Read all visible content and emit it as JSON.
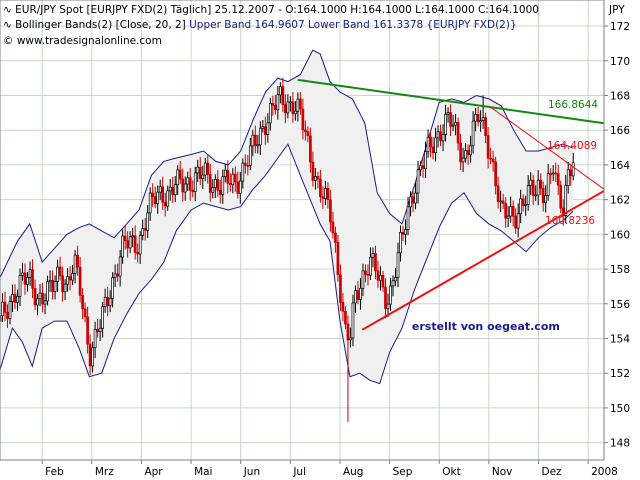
{
  "header": {
    "line1": "EUR/JPY Spot [EURJPY FXD(2)  Täglich] 25.12.2007 - O:164.1000 H:164.1000 L:164.1000 C:164.1000",
    "line2_prefix": "Bollinger Bands(2) [Close, 20, 2]",
    "line2_bands": "Upper Band 164.9607 Lower Band 161.3378 {EURJPY FXD(2)}",
    "line3": "© www.tradesignalonline.com"
  },
  "colors": {
    "background": "#ffffff",
    "grid": "#c8d6c8",
    "band_fill": "#f0f0f0",
    "band_line": "#1a1a8c",
    "candle_up": "#000000",
    "candle_down": "#cc0000",
    "upper_trendline": "#118811",
    "lower_trendline": "#ee1111",
    "upper_label": "#118811",
    "lower_label": "#ee1111",
    "credit": "#1a1a8c"
  },
  "chart_data": {
    "type": "candlestick",
    "instrument": "EUR/JPY Spot",
    "title": "EUR/JPY Spot [EURJPY FXD(2) Täglich] 25.12.2007",
    "ohlc_last": {
      "open": 164.1,
      "high": 164.1,
      "low": 164.1,
      "close": 164.1
    },
    "x_unit": "month (2007; 12 = Jan 2008)",
    "y_axis": {
      "label": "JPY",
      "side": "right",
      "range": [
        147,
        173.5
      ],
      "ticks": [
        148,
        150,
        152,
        154,
        156,
        158,
        160,
        162,
        164,
        166,
        168,
        170,
        172
      ]
    },
    "x_axis": {
      "range": [
        1.15,
        13.32
      ],
      "ticks": [
        {
          "label": "Feb",
          "x": 2.0
        },
        {
          "label": "Mrz",
          "x": 3.0
        },
        {
          "label": "Apr",
          "x": 4.0
        },
        {
          "label": "Mai",
          "x": 5.0
        },
        {
          "label": "Jun",
          "x": 6.0
        },
        {
          "label": "Jul",
          "x": 7.0
        },
        {
          "label": "Aug",
          "x": 8.0
        },
        {
          "label": "Sep",
          "x": 9.0
        },
        {
          "label": "Okt",
          "x": 10.0
        },
        {
          "label": "Nov",
          "x": 11.0
        },
        {
          "label": "Dez",
          "x": 12.0
        },
        {
          "label": "2008",
          "x": 13.0
        }
      ]
    },
    "grid": true,
    "close_series": {
      "name": "EUR/JPY close",
      "points": [
        [
          1.15,
          155.0
        ],
        [
          1.3,
          155.6
        ],
        [
          1.45,
          156.8
        ],
        [
          1.6,
          157.4
        ],
        [
          1.75,
          157.2
        ],
        [
          1.9,
          156.4
        ],
        [
          2.05,
          156.6
        ],
        [
          2.2,
          156.8
        ],
        [
          2.35,
          157.8
        ],
        [
          2.5,
          157.2
        ],
        [
          2.65,
          158.3
        ],
        [
          2.8,
          156.2
        ],
        [
          2.95,
          153.2
        ],
        [
          3.05,
          153.9
        ],
        [
          3.2,
          155.0
        ],
        [
          3.35,
          156.6
        ],
        [
          3.5,
          158.2
        ],
        [
          3.65,
          159.4
        ],
        [
          3.8,
          159.4
        ],
        [
          3.95,
          159.6
        ],
        [
          4.1,
          161.0
        ],
        [
          4.25,
          162.0
        ],
        [
          4.4,
          162.5
        ],
        [
          4.55,
          162.3
        ],
        [
          4.7,
          162.8
        ],
        [
          4.85,
          163.0
        ],
        [
          5.0,
          163.1
        ],
        [
          5.15,
          163.3
        ],
        [
          5.3,
          163.4
        ],
        [
          5.45,
          163.0
        ],
        [
          5.6,
          162.8
        ],
        [
          5.75,
          163.0
        ],
        [
          5.9,
          163.0
        ],
        [
          6.05,
          163.8
        ],
        [
          6.2,
          164.6
        ],
        [
          6.35,
          165.6
        ],
        [
          6.5,
          166.6
        ],
        [
          6.65,
          167.2
        ],
        [
          6.8,
          167.8
        ],
        [
          6.95,
          167.6
        ],
        [
          7.05,
          167.6
        ],
        [
          7.2,
          166.8
        ],
        [
          7.35,
          165.2
        ],
        [
          7.5,
          163.4
        ],
        [
          7.65,
          162.2
        ],
        [
          7.8,
          161.2
        ],
        [
          7.9,
          159.4
        ],
        [
          8.0,
          157.2
        ],
        [
          8.1,
          154.4
        ],
        [
          8.2,
          153.8
        ],
        [
          8.3,
          156.2
        ],
        [
          8.45,
          157.6
        ],
        [
          8.6,
          158.6
        ],
        [
          8.75,
          157.6
        ],
        [
          8.9,
          156.4
        ],
        [
          9.0,
          156.6
        ],
        [
          9.1,
          157.8
        ],
        [
          9.25,
          159.6
        ],
        [
          9.45,
          162.4
        ],
        [
          9.6,
          163.6
        ],
        [
          9.75,
          164.6
        ],
        [
          9.9,
          165.4
        ],
        [
          10.05,
          166.2
        ],
        [
          10.2,
          166.6
        ],
        [
          10.35,
          165.6
        ],
        [
          10.5,
          164.4
        ],
        [
          10.65,
          165.6
        ],
        [
          10.8,
          166.8
        ],
        [
          10.95,
          165.8
        ],
        [
          11.1,
          163.6
        ],
        [
          11.25,
          161.0
        ],
        [
          11.4,
          161.4
        ],
        [
          11.55,
          161.2
        ],
        [
          11.7,
          161.6
        ],
        [
          11.85,
          162.6
        ],
        [
          12.0,
          163.0
        ],
        [
          12.15,
          162.2
        ],
        [
          12.3,
          163.8
        ],
        [
          12.4,
          162.4
        ],
        [
          12.5,
          161.8
        ],
        [
          12.6,
          163.6
        ],
        [
          12.7,
          164.0
        ]
      ]
    },
    "bollinger": {
      "name": "Bollinger Bands(2) [Close, 20, 2]",
      "upper_last": 164.9607,
      "lower_last": 161.3378,
      "upper": [
        [
          1.15,
          157.5
        ],
        [
          1.5,
          159.6
        ],
        [
          1.75,
          160.6
        ],
        [
          2.0,
          158.4
        ],
        [
          2.25,
          159.2
        ],
        [
          2.5,
          160.0
        ],
        [
          2.75,
          160.4
        ],
        [
          2.95,
          160.6
        ],
        [
          3.2,
          160.2
        ],
        [
          3.45,
          159.8
        ],
        [
          3.7,
          160.6
        ],
        [
          3.95,
          161.4
        ],
        [
          4.2,
          163.4
        ],
        [
          4.45,
          164.2
        ],
        [
          4.7,
          164.4
        ],
        [
          5.0,
          164.6
        ],
        [
          5.25,
          164.8
        ],
        [
          5.5,
          164.2
        ],
        [
          5.75,
          164.0
        ],
        [
          6.0,
          164.8
        ],
        [
          6.25,
          166.6
        ],
        [
          6.5,
          168.2
        ],
        [
          6.75,
          169.0
        ],
        [
          6.95,
          168.8
        ],
        [
          7.2,
          169.2
        ],
        [
          7.45,
          170.6
        ],
        [
          7.6,
          170.4
        ],
        [
          7.8,
          168.8
        ],
        [
          8.0,
          168.2
        ],
        [
          8.25,
          167.8
        ],
        [
          8.5,
          166.4
        ],
        [
          8.75,
          162.4
        ],
        [
          9.0,
          161.2
        ],
        [
          9.25,
          160.6
        ],
        [
          9.5,
          162.8
        ],
        [
          9.75,
          165.2
        ],
        [
          10.0,
          167.6
        ],
        [
          10.25,
          167.8
        ],
        [
          10.5,
          167.6
        ],
        [
          10.75,
          168.0
        ],
        [
          11.0,
          167.8
        ],
        [
          11.25,
          167.4
        ],
        [
          11.5,
          166.0
        ],
        [
          11.75,
          164.8
        ],
        [
          12.0,
          164.8
        ],
        [
          12.25,
          165.0
        ],
        [
          12.5,
          165.2
        ],
        [
          12.7,
          164.96
        ]
      ],
      "lower": [
        [
          1.15,
          152.2
        ],
        [
          1.4,
          154.6
        ],
        [
          1.6,
          153.8
        ],
        [
          1.8,
          152.4
        ],
        [
          2.0,
          154.6
        ],
        [
          2.25,
          155.0
        ],
        [
          2.5,
          155.0
        ],
        [
          2.75,
          153.4
        ],
        [
          2.95,
          151.8
        ],
        [
          3.2,
          152.0
        ],
        [
          3.45,
          154.0
        ],
        [
          3.7,
          155.4
        ],
        [
          3.95,
          156.6
        ],
        [
          4.2,
          157.4
        ],
        [
          4.45,
          158.4
        ],
        [
          4.7,
          160.2
        ],
        [
          5.0,
          161.4
        ],
        [
          5.25,
          161.8
        ],
        [
          5.5,
          161.6
        ],
        [
          5.75,
          161.4
        ],
        [
          6.0,
          161.6
        ],
        [
          6.25,
          162.6
        ],
        [
          6.5,
          163.4
        ],
        [
          6.75,
          164.4
        ],
        [
          6.95,
          165.2
        ],
        [
          7.2,
          163.4
        ],
        [
          7.4,
          162.0
        ],
        [
          7.6,
          160.6
        ],
        [
          7.8,
          159.6
        ],
        [
          8.0,
          155.0
        ],
        [
          8.2,
          151.8
        ],
        [
          8.4,
          152.0
        ],
        [
          8.6,
          151.6
        ],
        [
          8.8,
          151.4
        ],
        [
          9.0,
          153.2
        ],
        [
          9.25,
          154.6
        ],
        [
          9.5,
          156.8
        ],
        [
          9.75,
          158.6
        ],
        [
          10.0,
          160.4
        ],
        [
          10.25,
          161.8
        ],
        [
          10.5,
          162.4
        ],
        [
          10.75,
          161.2
        ],
        [
          11.0,
          160.6
        ],
        [
          11.25,
          160.2
        ],
        [
          11.5,
          159.6
        ],
        [
          11.75,
          159.0
        ],
        [
          12.0,
          159.8
        ],
        [
          12.25,
          160.4
        ],
        [
          12.5,
          160.8
        ],
        [
          12.7,
          161.34
        ]
      ]
    },
    "extremes": {
      "low_spike": [
        8.15,
        149.2
      ],
      "high_spike": [
        10.9,
        168.0
      ]
    },
    "trendlines": [
      {
        "name": "resistance",
        "color": "green",
        "from": [
          7.15,
          168.9
        ],
        "to": [
          13.32,
          166.4
        ],
        "label": "166.8644"
      },
      {
        "name": "support",
        "color": "red",
        "from": [
          8.45,
          154.5
        ],
        "to": [
          13.32,
          162.5
        ],
        "label": "160.8236"
      },
      {
        "name": "descending",
        "color": "red-thin",
        "from": [
          11.0,
          167.4
        ],
        "to": [
          13.32,
          162.6
        ],
        "label": "164.4089"
      }
    ],
    "annotations": [
      {
        "text": "erstellt von oegeat.com",
        "x": 9.45,
        "y": 154.5
      }
    ]
  }
}
